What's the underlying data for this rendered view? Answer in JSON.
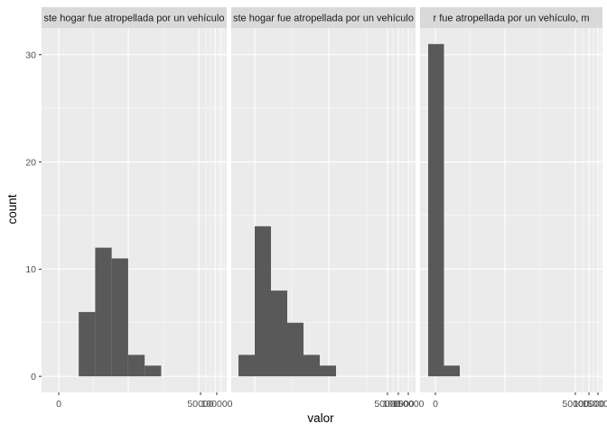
{
  "chart_data": {
    "type": "bar",
    "subtype": "faceted-histogram",
    "xlabel": "valor",
    "ylabel": "count",
    "ylim": [
      -1.5,
      32.5
    ],
    "y_ticks": [
      0,
      10,
      20,
      30
    ],
    "grid": true,
    "legend": "none",
    "colors": {
      "panel_background": "#ebebeb",
      "strip_background": "#d9d9d9",
      "grid_major": "#ffffff",
      "bar_fill": "#595959"
    },
    "facets": [
      {
        "strip": "ste hogar fue atropellada por un vehículo",
        "x_ticks": [
          {
            "label": "0"
          },
          {
            "label": "50000"
          },
          {
            "label": "100000"
          }
        ],
        "bins": [
          {
            "x0": 2.2,
            "x1": 3.2,
            "count": 6
          },
          {
            "x0": 3.2,
            "x1": 4.2,
            "count": 12
          },
          {
            "x0": 4.2,
            "x1": 5.2,
            "count": 11
          },
          {
            "x0": 5.2,
            "x1": 6.2,
            "count": 2
          },
          {
            "x0": 6.2,
            "x1": 7.2,
            "count": 1
          }
        ]
      },
      {
        "strip": "ste hogar fue atropellada por un vehículo",
        "x_ticks": [
          {
            "label": "50000"
          },
          {
            "label": "100000"
          },
          {
            "label": "150000"
          }
        ],
        "bins": [
          {
            "x0": 0.0,
            "x1": 1.0,
            "count": 2
          },
          {
            "x0": 1.0,
            "x1": 2.0,
            "count": 14
          },
          {
            "x0": 2.0,
            "x1": 3.0,
            "count": 8
          },
          {
            "x0": 3.0,
            "x1": 4.0,
            "count": 5
          },
          {
            "x0": 4.0,
            "x1": 5.0,
            "count": 2
          },
          {
            "x0": 5.0,
            "x1": 6.0,
            "count": 1
          }
        ]
      },
      {
        "strip": "r fue atropellada por un vehículo, m",
        "x_ticks": [
          {
            "label": "0"
          },
          {
            "label": "50000"
          },
          {
            "label": "100000"
          },
          {
            "label": "150000"
          }
        ],
        "bins": [
          {
            "x0": 0.0,
            "x1": 1.0,
            "count": 31
          },
          {
            "x0": 1.0,
            "x1": 2.0,
            "count": 1
          }
        ]
      }
    ]
  }
}
